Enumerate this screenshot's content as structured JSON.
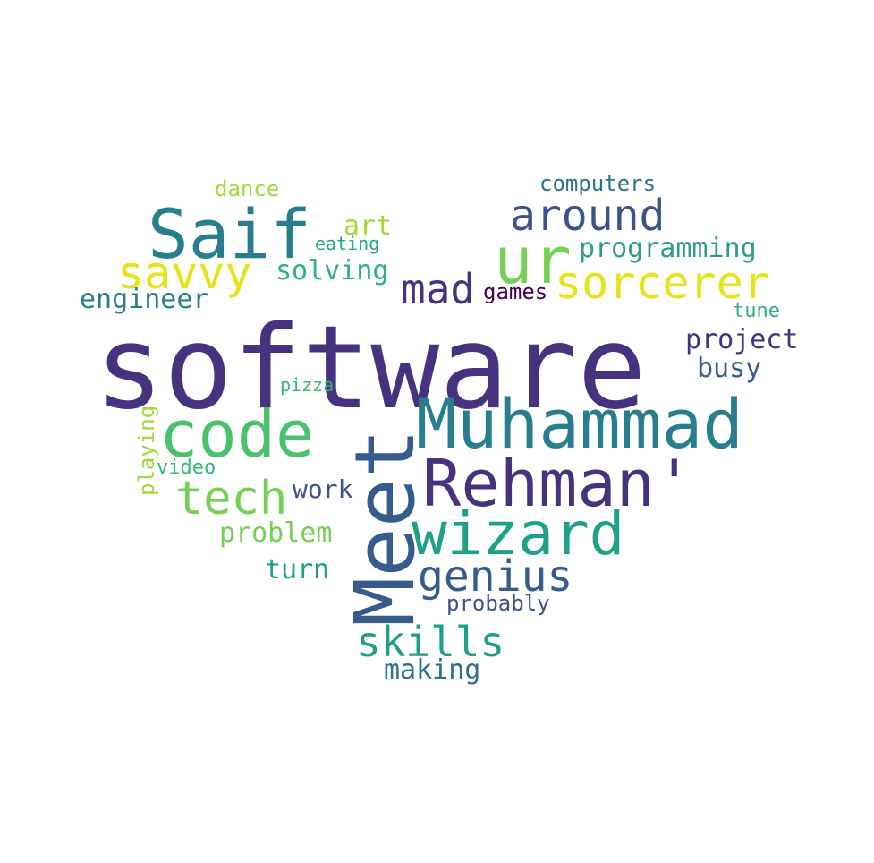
{
  "words": [
    {
      "id": "software",
      "text": "software",
      "color": "#46327e"
    },
    {
      "id": "meet",
      "text": "Meet",
      "color": "#365c8d"
    },
    {
      "id": "muhammad",
      "text": "Muhammad",
      "color": "#277f8e"
    },
    {
      "id": "rehman",
      "text": "Rehman'",
      "color": "#46327e"
    },
    {
      "id": "ur",
      "text": "ur",
      "color": "#75d054"
    },
    {
      "id": "saif",
      "text": "Saif",
      "color": "#277f8e"
    },
    {
      "id": "code",
      "text": "code",
      "color": "#4ac16d"
    },
    {
      "id": "wizard",
      "text": "wizard",
      "color": "#1fa187"
    },
    {
      "id": "sorcerer",
      "text": "sorcerer",
      "color": "#e4e419"
    },
    {
      "id": "around",
      "text": "around",
      "color": "#3b528b"
    },
    {
      "id": "tech",
      "text": "tech",
      "color": "#75d054"
    },
    {
      "id": "savvy",
      "text": "savvy",
      "color": "#e4e419"
    },
    {
      "id": "genius",
      "text": "genius",
      "color": "#365c8d"
    },
    {
      "id": "mad",
      "text": "mad",
      "color": "#46327e"
    },
    {
      "id": "skills",
      "text": "skills",
      "color": "#1f9e89"
    },
    {
      "id": "programming",
      "text": "programming",
      "color": "#2a9d8f"
    },
    {
      "id": "engineer",
      "text": "engineer",
      "color": "#277f8e"
    },
    {
      "id": "solving",
      "text": "solving",
      "color": "#2db27d"
    },
    {
      "id": "project",
      "text": "project",
      "color": "#46327e"
    },
    {
      "id": "busy",
      "text": "busy",
      "color": "#365c8d"
    },
    {
      "id": "problem",
      "text": "problem",
      "color": "#75d054"
    },
    {
      "id": "turn",
      "text": "turn",
      "color": "#1f9e89"
    },
    {
      "id": "making",
      "text": "making",
      "color": "#2c728e"
    },
    {
      "id": "work",
      "text": "work",
      "color": "#3b528b"
    },
    {
      "id": "art",
      "text": "art",
      "color": "#a0da39"
    },
    {
      "id": "computers",
      "text": "computers",
      "color": "#2c728e"
    },
    {
      "id": "probably",
      "text": "probably",
      "color": "#3b528b"
    },
    {
      "id": "games",
      "text": "games",
      "color": "#440154"
    },
    {
      "id": "dance",
      "text": "dance",
      "color": "#a0da39"
    },
    {
      "id": "eating",
      "text": "eating",
      "color": "#22a884"
    },
    {
      "id": "tune",
      "text": "tune",
      "color": "#2db27d"
    },
    {
      "id": "pizza",
      "text": "pizza",
      "color": "#35b779"
    },
    {
      "id": "video",
      "text": "video",
      "color": "#35b779"
    },
    {
      "id": "playing",
      "text": "playing",
      "color": "#a0da39"
    }
  ]
}
